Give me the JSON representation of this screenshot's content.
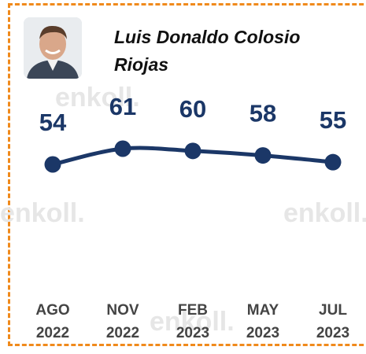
{
  "chart_data": {
    "type": "line",
    "title": "Luis Donaldo Colosio Riojas",
    "watermark": "enkoll.",
    "categories": [
      "AGO 2022",
      "NOV 2022",
      "FEB 2023",
      "MAY 2023",
      "JUL 2023"
    ],
    "series": [
      {
        "name": "Luis Donaldo Colosio Riojas",
        "color": "#1b3767",
        "values": [
          54,
          61,
          60,
          58,
          55
        ]
      }
    ]
  }
}
